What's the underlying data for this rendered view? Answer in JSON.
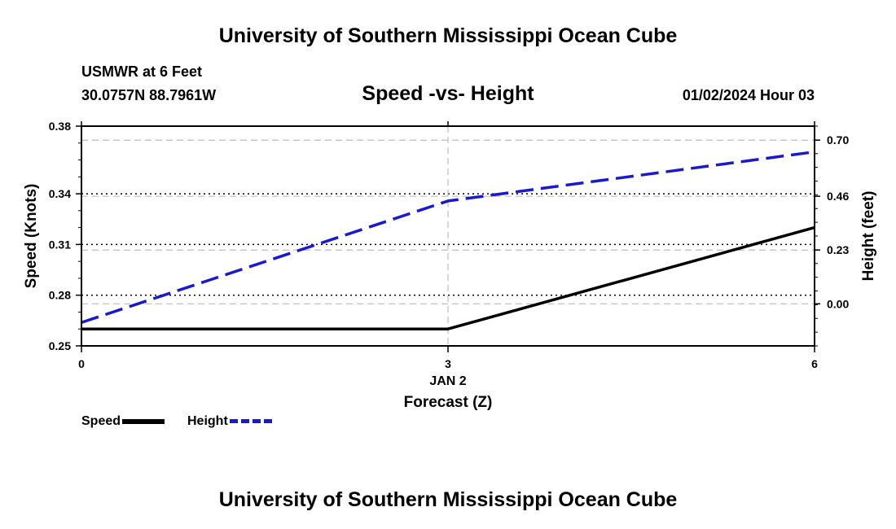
{
  "header": {
    "title_top": "University of Southern Mississippi Ocean Cube",
    "title_bottom": "University of Southern Mississippi Ocean Cube",
    "station": "USMWR at 6 Feet",
    "coords": "30.0757N  88.7961W",
    "datetime": "01/02/2024 Hour 03"
  },
  "chart_data": {
    "type": "line",
    "title": "Speed -vs- Height",
    "xlabel": "Forecast (Z)",
    "x_tick_labels": [
      "0",
      "3",
      "6"
    ],
    "x_date_label": "JAN 2",
    "x": [
      0,
      3,
      6
    ],
    "xlim": [
      0,
      6
    ],
    "y_left": {
      "label": "Speed (Knots)",
      "ylim": [
        0.25,
        0.38
      ],
      "ticks": [
        0.25,
        0.28,
        0.31,
        0.34,
        0.38
      ],
      "tick_labels": [
        "0.25",
        "0.28",
        "0.31",
        "0.34",
        "0.38"
      ]
    },
    "y_right": {
      "label": "Height (feet)",
      "ylim": [
        -0.18,
        0.76
      ],
      "ticks": [
        0.0,
        0.23,
        0.46,
        0.7
      ],
      "tick_labels": [
        "0.00",
        "0.23",
        "0.46",
        "0.70"
      ]
    },
    "grid": true,
    "series": [
      {
        "name": "Speed",
        "axis": "left",
        "color": "#000000",
        "style": "solid",
        "values": [
          0.26,
          0.26,
          0.32
        ]
      },
      {
        "name": "Height",
        "axis": "right",
        "color": "#1a1acc",
        "style": "dashed",
        "values": [
          -0.08,
          0.44,
          0.65
        ]
      }
    ],
    "legend": {
      "placement": "bottom-left",
      "entries": [
        "Speed",
        "Height"
      ]
    }
  }
}
